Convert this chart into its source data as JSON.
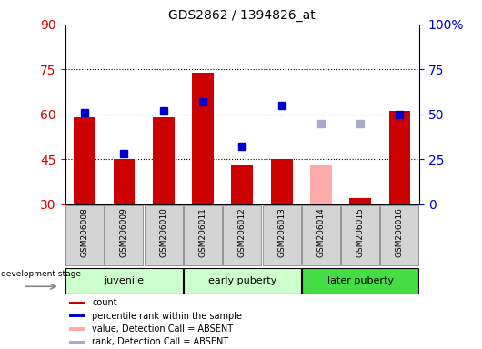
{
  "title": "GDS2862 / 1394826_at",
  "samples": [
    "GSM206008",
    "GSM206009",
    "GSM206010",
    "GSM206011",
    "GSM206012",
    "GSM206013",
    "GSM206014",
    "GSM206015",
    "GSM206016"
  ],
  "bar_values": [
    59,
    45,
    59,
    74,
    43,
    45,
    null,
    32,
    61
  ],
  "bar_color": "#cc0000",
  "absent_bar_values": [
    null,
    null,
    null,
    null,
    null,
    null,
    43,
    null,
    null
  ],
  "absent_bar_color": "#ffaaaa",
  "rank_values": [
    51,
    28,
    52,
    57,
    32,
    55,
    null,
    null,
    50
  ],
  "rank_color": "#0000cc",
  "absent_rank_values": [
    null,
    null,
    null,
    null,
    null,
    null,
    45,
    45,
    null
  ],
  "absent_rank_color": "#aaaacc",
  "bar_bottom": 30,
  "ylim_left": [
    30,
    90
  ],
  "ylim_right": [
    0,
    100
  ],
  "yticks_left": [
    30,
    45,
    60,
    75,
    90
  ],
  "yticks_right": [
    0,
    25,
    50,
    75,
    100
  ],
  "yticklabels_right": [
    "0",
    "25",
    "50",
    "75",
    "100%"
  ],
  "grid_values": [
    45,
    60,
    75
  ],
  "left_tick_color": "#cc0000",
  "right_tick_color": "#0000cc",
  "group_info": [
    {
      "name": "juvenile",
      "start": 0,
      "end": 2,
      "color": "#ccffcc"
    },
    {
      "name": "early puberty",
      "start": 3,
      "end": 5,
      "color": "#ccffcc"
    },
    {
      "name": "later puberty",
      "start": 6,
      "end": 8,
      "color": "#44dd44"
    }
  ],
  "legend_items": [
    {
      "color": "#cc0000",
      "label": "count"
    },
    {
      "color": "#0000cc",
      "label": "percentile rank within the sample"
    },
    {
      "color": "#ffaaaa",
      "label": "value, Detection Call = ABSENT"
    },
    {
      "color": "#aaaacc",
      "label": "rank, Detection Call = ABSENT"
    }
  ]
}
